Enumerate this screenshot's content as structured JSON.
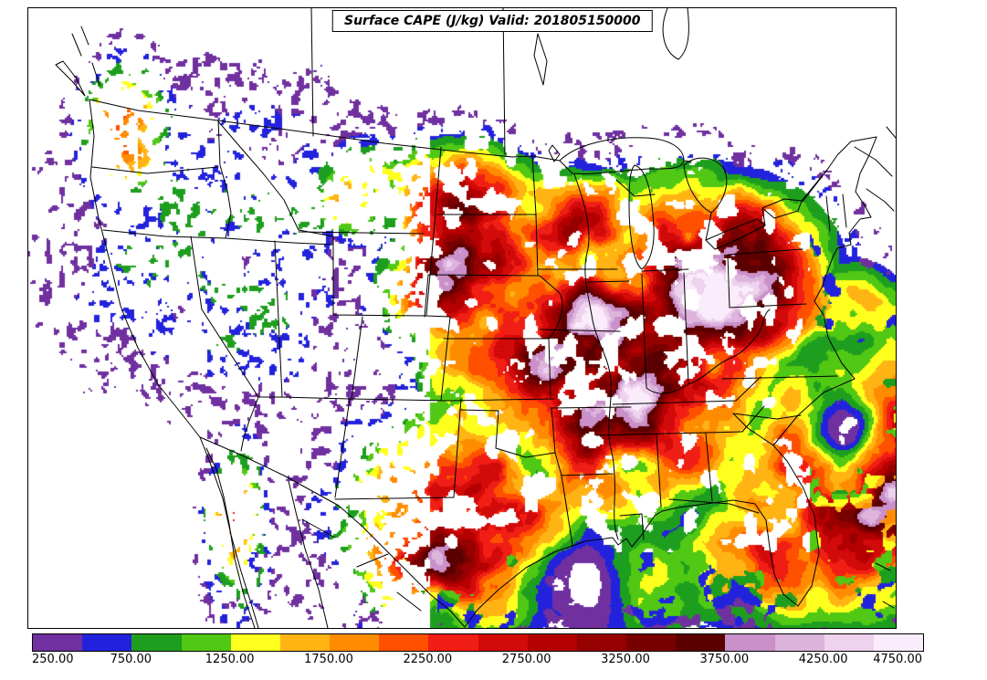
{
  "title": {
    "text": "Surface CAPE (J/kg) Valid: 201805150000"
  },
  "colorbar": {
    "tick_labels": [
      "250.00",
      "750.00",
      "1250.00",
      "1750.00",
      "2250.00",
      "2750.00",
      "3250.00",
      "3750.00",
      "4250.00",
      "4750.00"
    ],
    "levels": [
      250,
      500,
      750,
      1000,
      1250,
      1500,
      1750,
      2000,
      2250,
      2500,
      2750,
      3000,
      3250,
      3500,
      3750,
      4000,
      4250,
      4500,
      4750
    ],
    "colors": [
      "#7030A0",
      "#2222DD",
      "#1E9E1E",
      "#50C814",
      "#FFFF1E",
      "#FFB414",
      "#FF8C00",
      "#FF5000",
      "#F01E14",
      "#D20A0A",
      "#B40000",
      "#960000",
      "#780000",
      "#5A0000",
      "#C990C9",
      "#DCB4DC",
      "#EED2EE",
      "#FAECFA"
    ]
  },
  "chart_data": {
    "type": "heatmap",
    "title": "Surface CAPE (J/kg) Valid: 201805150000",
    "variable": "Surface CAPE",
    "units": "J/kg",
    "valid_time": "201805150000",
    "region": "Continental United States with southern Canada, northern Mexico, Gulf of Mexico and western Atlantic",
    "levels": [
      250,
      500,
      750,
      1000,
      1250,
      1500,
      1750,
      2000,
      2250,
      2500,
      2750,
      3000,
      3250,
      3500,
      3750,
      4000,
      4250,
      4500,
      4750
    ],
    "palette": [
      "#7030A0",
      "#2222DD",
      "#1E9E1E",
      "#50C814",
      "#FFFF1E",
      "#FFB414",
      "#FF8C00",
      "#FF5000",
      "#F01E14",
      "#D20A0A",
      "#B40000",
      "#960000",
      "#780000",
      "#5A0000",
      "#C990C9",
      "#DCB4DC",
      "#EED2EE",
      "#FAECFA"
    ],
    "colorbar_ticks": [
      250,
      750,
      1250,
      1750,
      2250,
      2750,
      3250,
      3750,
      4250,
      4750
    ],
    "legend_position": "bottom",
    "notes": "Filled CAPE contours: maximum (dark red/maroon >2750 with pink >3750 patches) over Mississippi/Ohio valleys and Southeast; secondary maxima over central Plains, south Texas and the western Atlantic; green/blue values over the Gulf of Mexico; sparse low-CAPE speckles (purple/blue/green) over the Intermountain West, Montana, Baja California and southern Canada."
  }
}
